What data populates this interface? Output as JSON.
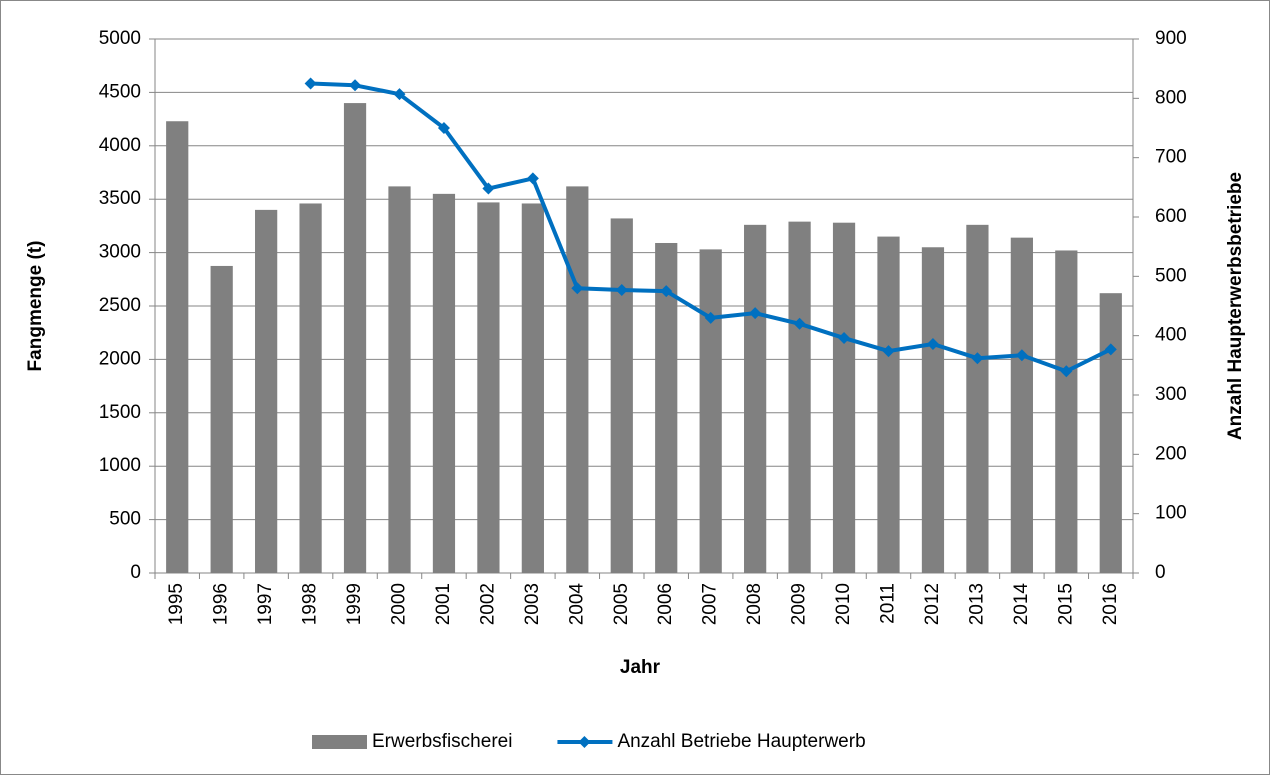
{
  "chart_data": {
    "type": "bar-line",
    "x_label": "Jahr",
    "y_label": "Fangmenge (t)",
    "y2_label": "Anzahl Haupterwerbsbetriebe",
    "categories": [
      "1995",
      "1996",
      "1997",
      "1998",
      "1999",
      "2000",
      "2001",
      "2002",
      "2003",
      "2004",
      "2005",
      "2006",
      "2007",
      "2008",
      "2009",
      "2010",
      "2011",
      "2012",
      "2013",
      "2014",
      "2015",
      "2016"
    ],
    "series": [
      {
        "name": "Erwerbsfischerei",
        "type": "bar",
        "color": "#808080",
        "values": [
          4230,
          2875,
          3400,
          3460,
          4400,
          3620,
          3550,
          3470,
          3460,
          3620,
          3320,
          3090,
          3030,
          3260,
          3290,
          3280,
          3150,
          3050,
          3260,
          3140,
          3020,
          2620
        ]
      },
      {
        "name": "Anzahl Betriebe Haupterwerb",
        "type": "line",
        "axis": "y2",
        "color": "#0070c0",
        "values": [
          null,
          null,
          null,
          825,
          822,
          807,
          750,
          648,
          665,
          480,
          477,
          475,
          430,
          438,
          420,
          396,
          374,
          386,
          362,
          367,
          340,
          377
        ]
      }
    ],
    "ylim": [
      0,
      5000
    ],
    "yticks": [
      0,
      500,
      1000,
      1500,
      2000,
      2500,
      3000,
      3500,
      4000,
      4500,
      5000
    ],
    "y2lim": [
      0,
      900
    ],
    "y2ticks": [
      0,
      100,
      200,
      300,
      400,
      500,
      600,
      700,
      800,
      900
    ],
    "grid": true,
    "legend": "bottom"
  }
}
